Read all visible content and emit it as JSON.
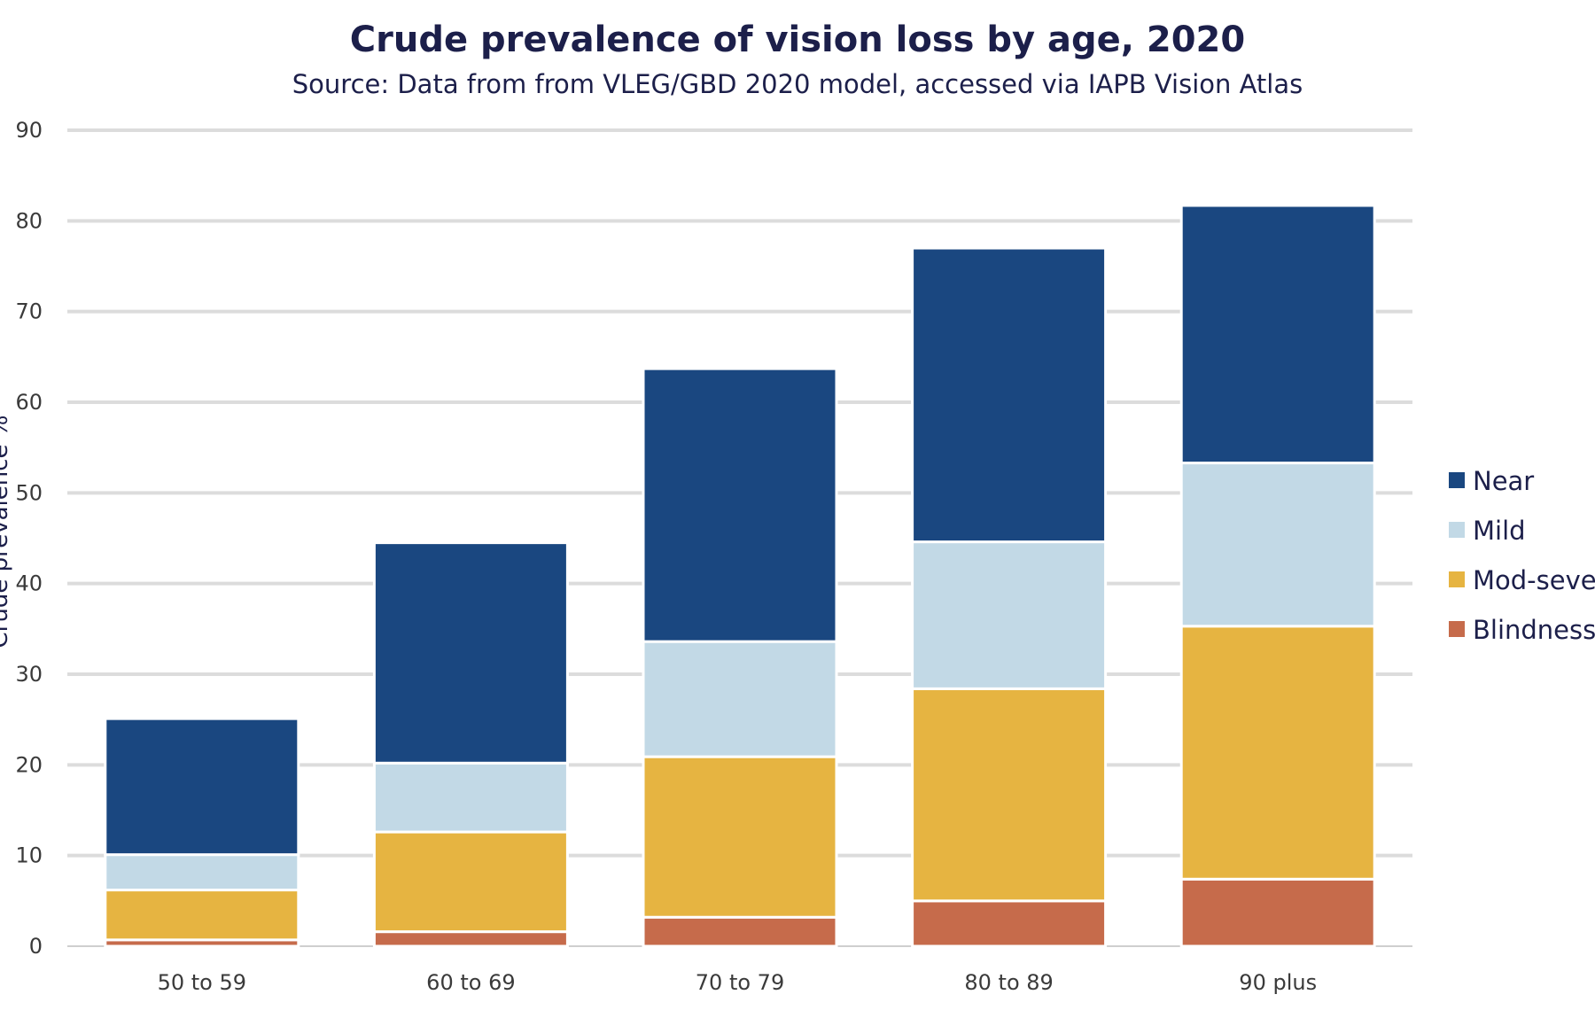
{
  "chart_data": {
    "type": "bar",
    "stacked": true,
    "title": "Crude prevalence of vision loss by age, 2020",
    "subtitle": "Source: Data from from VLEG/GBD 2020 model, accessed via IAPB Vision Atlas",
    "xlabel": "",
    "ylabel": "Crude prevalence %",
    "ylim": [
      0,
      90
    ],
    "yticks": [
      0,
      10,
      20,
      30,
      40,
      50,
      60,
      70,
      80,
      90
    ],
    "grid": true,
    "legend_position": "right",
    "categories": [
      "50 to 59",
      "60 to 69",
      "70 to 79",
      "80 to 89",
      "90 plus"
    ],
    "series": [
      {
        "name": "Blindness",
        "color": "#c66b4b",
        "values": [
          0.7,
          1.6,
          3.2,
          5.0,
          7.4
        ]
      },
      {
        "name": "Mod-severe",
        "color": "#e6b441",
        "values": [
          5.5,
          11.0,
          17.7,
          23.4,
          27.9
        ]
      },
      {
        "name": "Mild",
        "color": "#c2d9e6",
        "values": [
          3.9,
          7.6,
          12.7,
          16.2,
          18.0
        ]
      },
      {
        "name": "Near",
        "color": "#1a4780",
        "values": [
          15.0,
          24.3,
          30.1,
          32.4,
          28.4
        ]
      }
    ],
    "legend_order": [
      "Near",
      "Mild",
      "Mod-severe",
      "Blindness"
    ]
  }
}
